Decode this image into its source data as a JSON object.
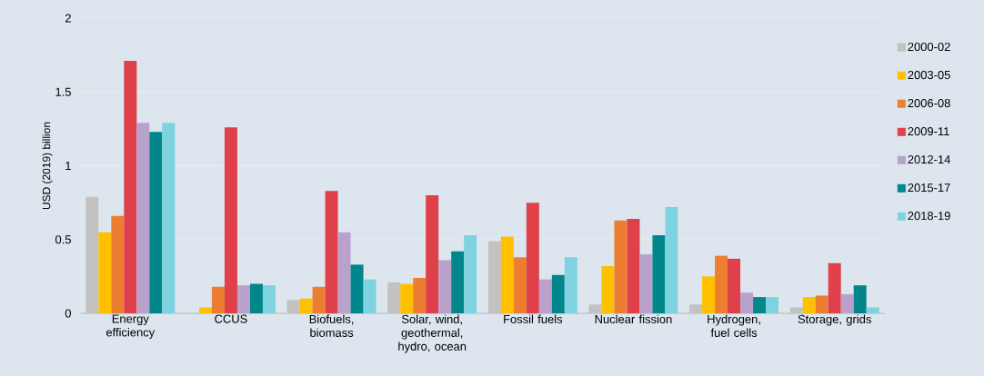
{
  "chart_data": {
    "type": "bar",
    "ylabel": "USD (2019) billion",
    "categories": [
      "Energy efficiency",
      "CCUS",
      "Biofuels, biomass",
      "Solar, wind, geothermal, hydro, ocean",
      "Fossil fuels",
      "Nuclear fission",
      "Hydrogen, fuel cells",
      "Storage, grids"
    ],
    "series": [
      {
        "name": "2000-02",
        "color": "#c3c2c1",
        "values": [
          0.79,
          0.0,
          0.09,
          0.21,
          0.49,
          0.06,
          0.06,
          0.04
        ]
      },
      {
        "name": "2003-05",
        "color": "#ffc000",
        "values": [
          0.55,
          0.04,
          0.1,
          0.2,
          0.52,
          0.32,
          0.25,
          0.11
        ]
      },
      {
        "name": "2006-08",
        "color": "#ed7d31",
        "values": [
          0.66,
          0.18,
          0.18,
          0.24,
          0.38,
          0.63,
          0.39,
          0.12
        ]
      },
      {
        "name": "2009-11",
        "color": "#e0404a",
        "values": [
          1.71,
          1.26,
          0.83,
          0.8,
          0.75,
          0.64,
          0.37,
          0.34
        ]
      },
      {
        "name": "2012-14",
        "color": "#b9a1cc",
        "values": [
          1.29,
          0.19,
          0.55,
          0.36,
          0.23,
          0.4,
          0.14,
          0.13
        ]
      },
      {
        "name": "2015-17",
        "color": "#00868b",
        "values": [
          1.23,
          0.2,
          0.33,
          0.42,
          0.26,
          0.53,
          0.11,
          0.19
        ]
      },
      {
        "name": "2018-19",
        "color": "#7fd3e0",
        "values": [
          1.29,
          0.19,
          0.23,
          0.53,
          0.38,
          0.72,
          0.11,
          0.04
        ]
      }
    ],
    "ylim": [
      0,
      2
    ],
    "yticks": [
      0,
      0.5,
      1,
      1.5,
      2
    ],
    "grid": "y",
    "legend": "right"
  }
}
